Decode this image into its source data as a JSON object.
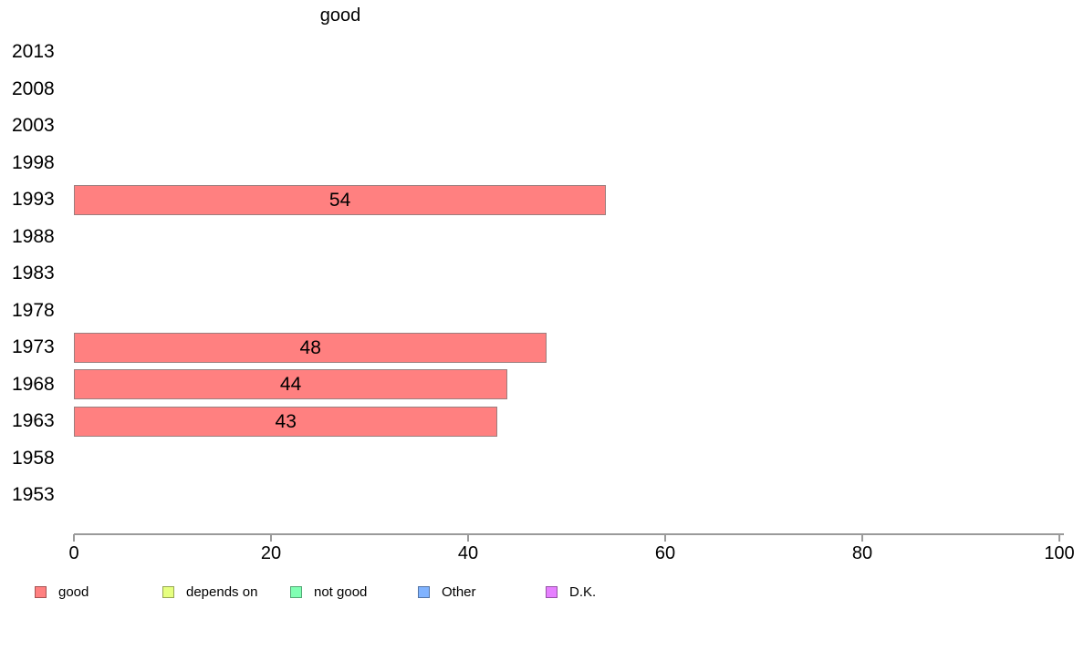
{
  "chart_data": {
    "type": "bar",
    "orientation": "horizontal",
    "title": "good",
    "categories": [
      "2013",
      "2008",
      "2003",
      "1998",
      "1993",
      "1988",
      "1983",
      "1978",
      "1973",
      "1968",
      "1963",
      "1958",
      "1953"
    ],
    "values": [
      0,
      0,
      0,
      0,
      54,
      0,
      0,
      0,
      48,
      44,
      43,
      0,
      0
    ],
    "value_labels_shown": [
      "54",
      "48",
      "44",
      "43"
    ],
    "xlabel": "",
    "ylabel": "",
    "xlim": [
      0,
      100
    ],
    "x_ticks": [
      "0",
      "20",
      "40",
      "60",
      "80",
      "100"
    ],
    "grid": false,
    "bar_color": "#FF8080",
    "axis_color": "#9a9a9a",
    "legend_position": "bottom",
    "legend": [
      {
        "label": "good",
        "color": "#FF8080"
      },
      {
        "label": "depends on",
        "color": "#E6FF80"
      },
      {
        "label": "not good",
        "color": "#80FFB3"
      },
      {
        "label": "Other",
        "color": "#80B3FF"
      },
      {
        "label": "D.K.",
        "color": "#E680FF"
      }
    ]
  }
}
